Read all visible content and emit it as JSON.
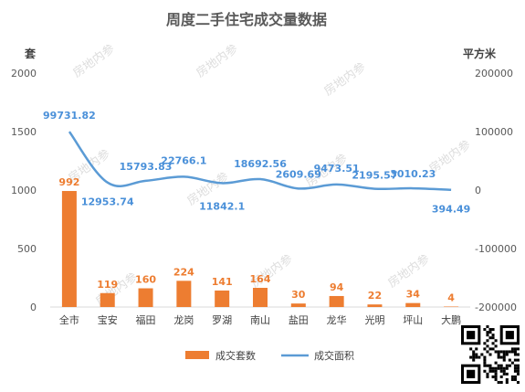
{
  "chart_data": {
    "type": "bar",
    "title": "周度二手住宅成交量数据",
    "y_left_unit": "套",
    "y_right_unit": "平方米",
    "ylim_left": [
      0,
      2000
    ],
    "yticks_left": [
      "0",
      "500",
      "1000",
      "1500",
      "2000"
    ],
    "ylim_right": [
      -200000,
      200000
    ],
    "yticks_right": [
      "-200000",
      "-100000",
      "0",
      "100000",
      "200000"
    ],
    "categories": [
      "全市",
      "宝安",
      "福田",
      "龙岗",
      "罗湖",
      "南山",
      "盐田",
      "龙华",
      "光明",
      "坪山",
      "大鹏"
    ],
    "series": [
      {
        "name": "成交套数",
        "type": "bar",
        "axis": "left",
        "color": "#ED7D31",
        "values": [
          992,
          119,
          160,
          224,
          141,
          164,
          30,
          94,
          22,
          34,
          4
        ],
        "labels": [
          "992",
          "119",
          "160",
          "224",
          "141",
          "164",
          "30",
          "94",
          "22",
          "34",
          "4"
        ]
      },
      {
        "name": "成交面积",
        "type": "line",
        "axis": "right",
        "color": "#5B9BD5",
        "values": [
          99731.82,
          12953.74,
          15793.83,
          22766.1,
          11842.1,
          18692.56,
          2609.69,
          9473.51,
          2195.57,
          3010.23,
          394.49
        ],
        "labels": [
          "99731.82",
          "12953.74",
          "15793.83",
          "22766.1",
          "11842.1",
          "18692.56",
          "2609.69",
          "9473.51",
          "2195.57",
          "3010.23",
          "394.49"
        ]
      }
    ],
    "legend": {
      "position": "bottom"
    },
    "grid": false,
    "watermark": "房地内参"
  }
}
